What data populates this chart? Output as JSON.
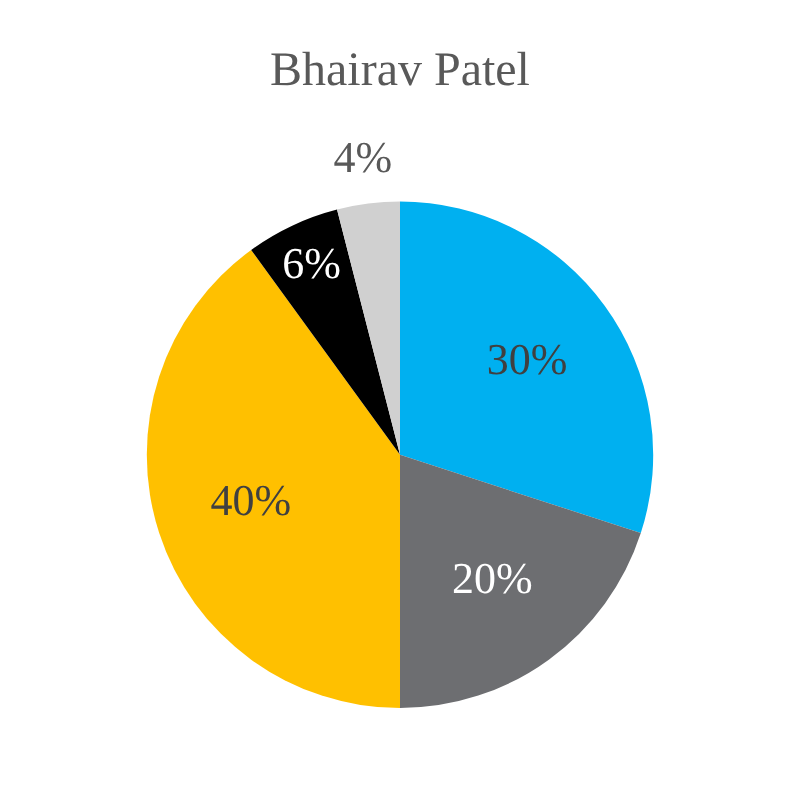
{
  "chart_data": {
    "type": "pie",
    "title": "Bhairav Patel",
    "categories": [
      null,
      null,
      null,
      null,
      null
    ],
    "values": [
      30,
      20,
      40,
      6,
      4
    ],
    "colors": [
      "#00b0f0",
      "#6d6e71",
      "#ffc000",
      "#000000",
      "#d0d0d0"
    ],
    "value_labels": [
      "30%",
      "20%",
      "40%",
      "6%",
      "4%"
    ],
    "legend": false
  }
}
